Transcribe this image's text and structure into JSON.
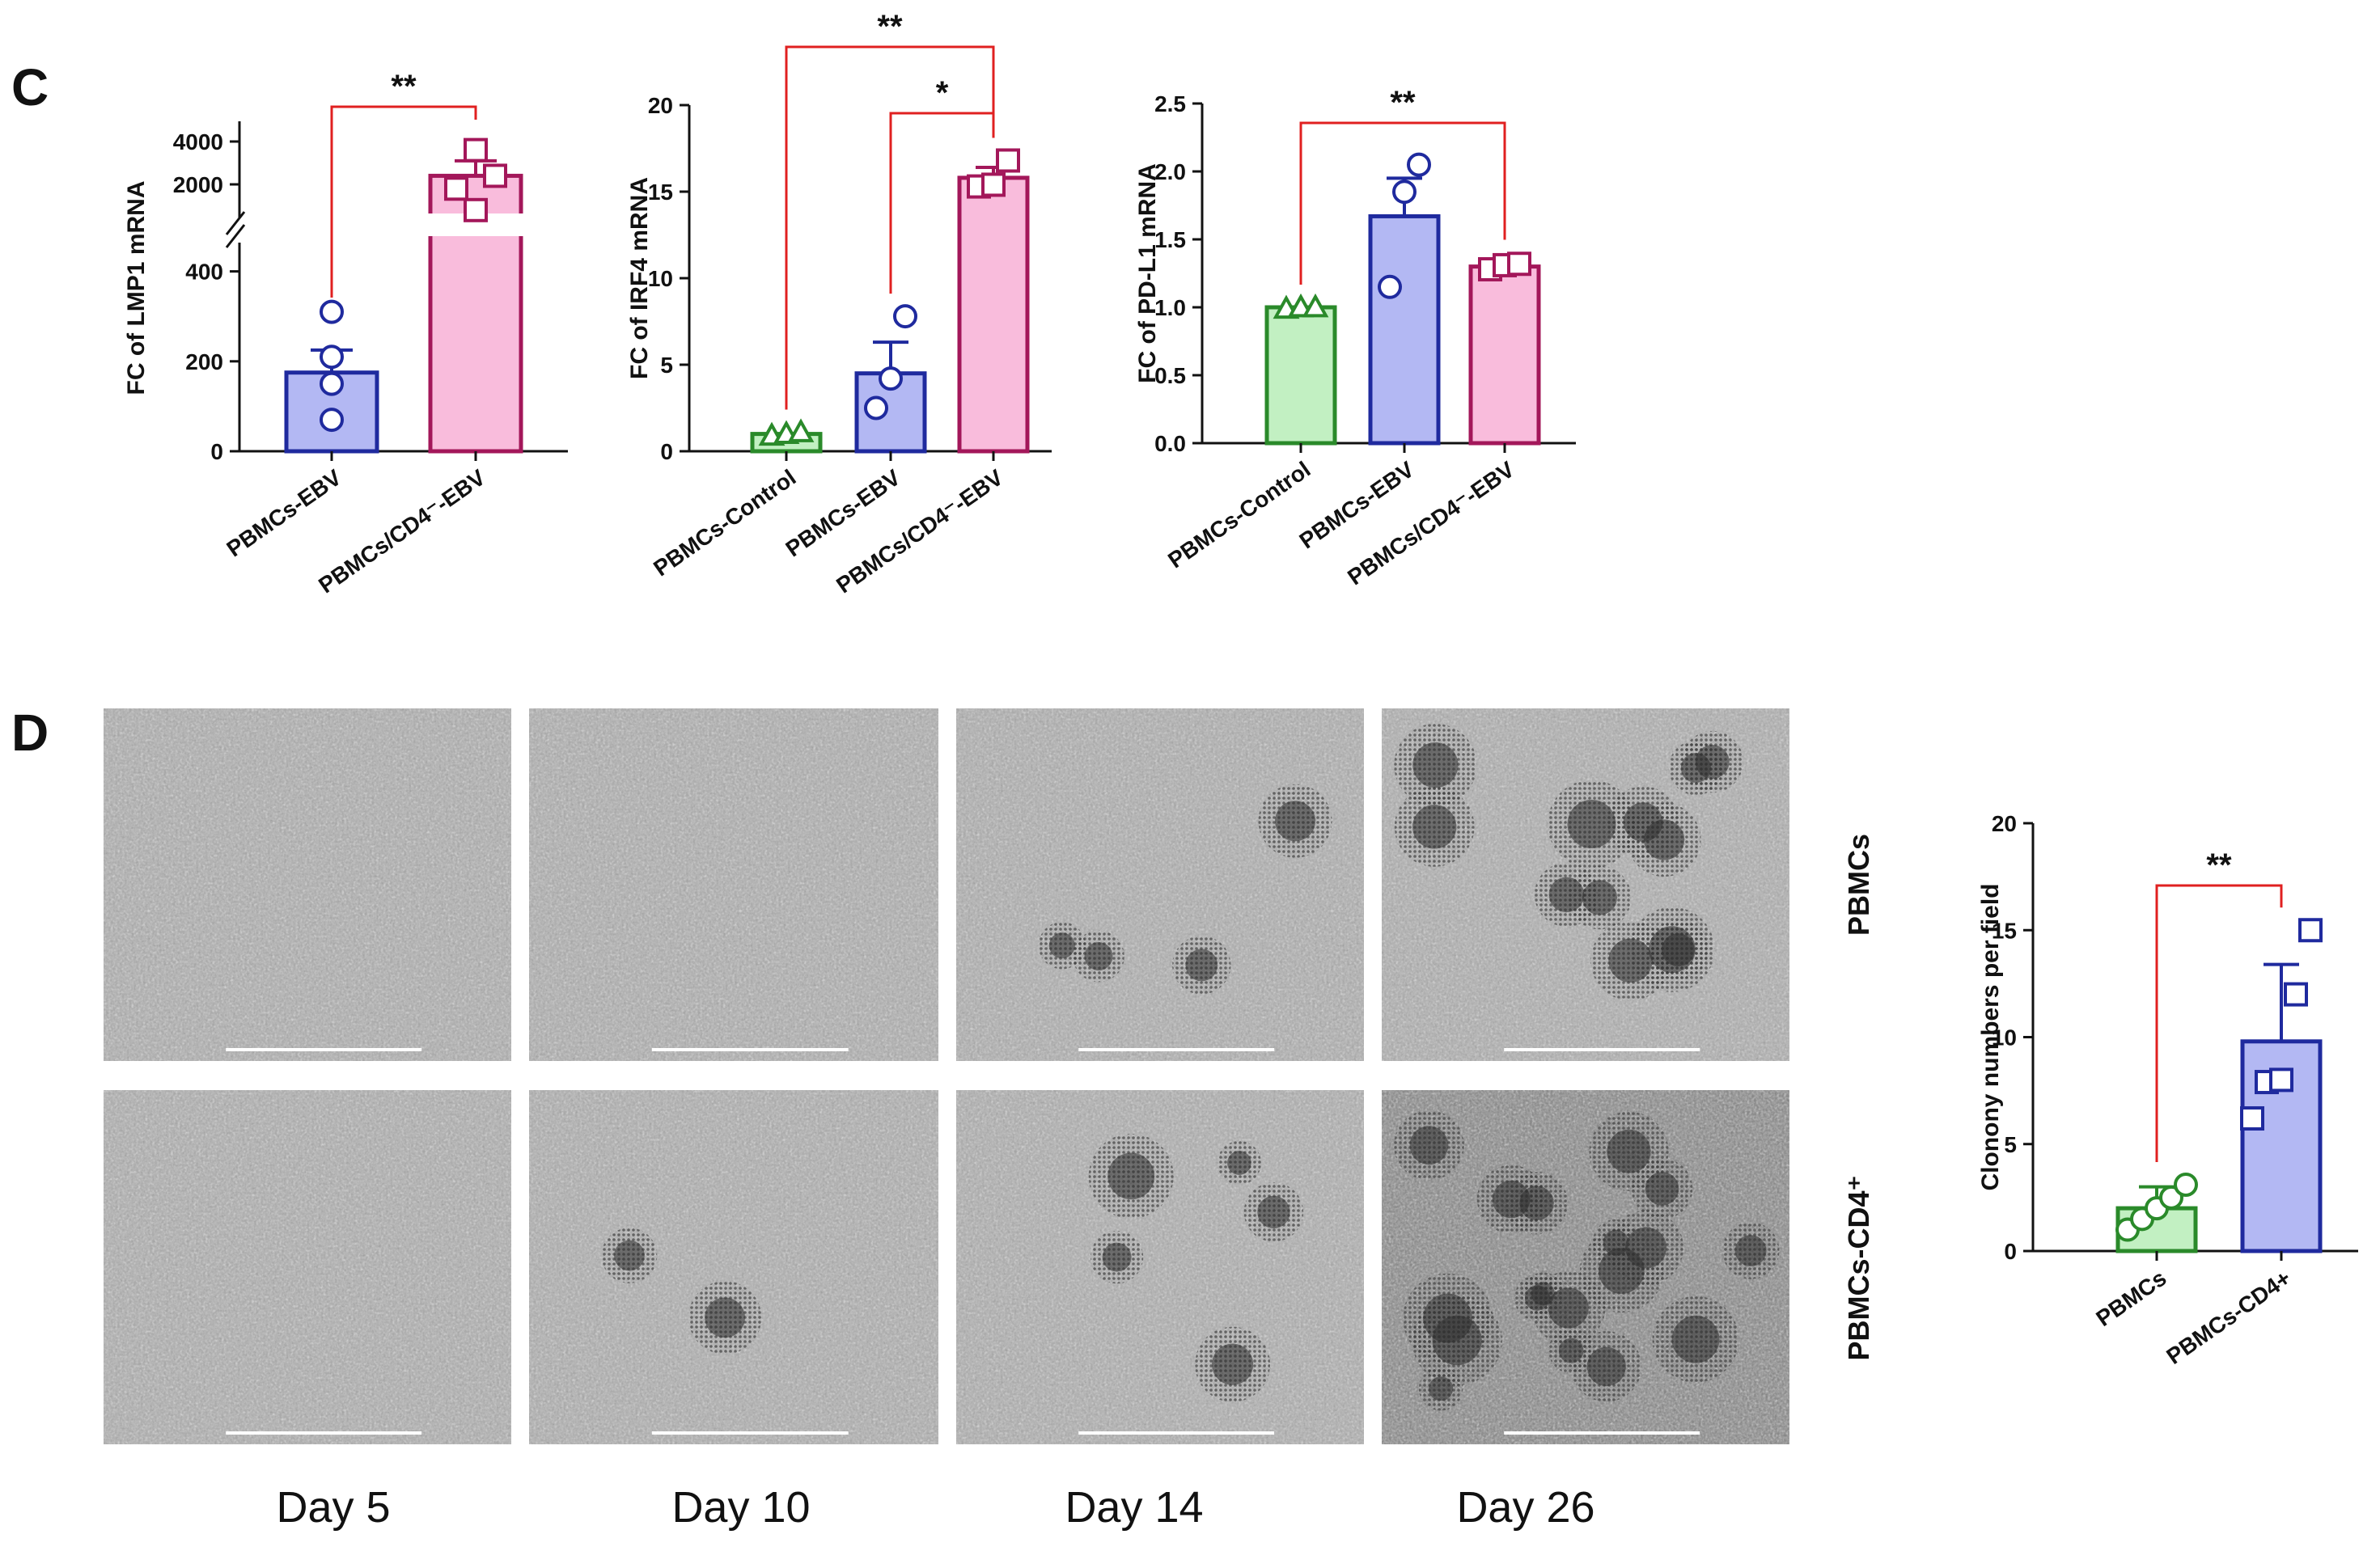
{
  "panels": {
    "c_label": "C",
    "d_label": "D"
  },
  "colors": {
    "blue_fill": "#b3b8f3",
    "blue_stroke": "#1f2a9e",
    "pink_fill": "#f9bcdc",
    "pink_stroke": "#a3175a",
    "green_fill": "#c2f0c2",
    "green_stroke": "#2a8a2a",
    "sig_line": "#e02020"
  },
  "chart_data": [
    {
      "id": "lmp1",
      "type": "bar",
      "ylabel": "FC of LMP1 mRNA",
      "axis_break": true,
      "lower_ylim": [
        0,
        500
      ],
      "lower_ticks": [
        "0",
        "200",
        "400"
      ],
      "upper_ticks": [
        "2000",
        "4000"
      ],
      "categories": [
        "PBMCs-EBV",
        "PBMCs/CD4⁻-EBV"
      ],
      "values": [
        175,
        2400
      ],
      "error": [
        50,
        700
      ],
      "points": [
        [
          70,
          150,
          210,
          310
        ],
        [
          800,
          1800,
          2400,
          3600
        ]
      ],
      "styles": [
        "blue",
        "pink"
      ],
      "markers": [
        "circle",
        "square"
      ],
      "significance": [
        {
          "from": 0,
          "to": 1,
          "label": "**"
        }
      ]
    },
    {
      "id": "irf4",
      "type": "bar",
      "ylabel": "FC of IRF4 mRNA",
      "ylim": [
        0,
        20
      ],
      "ticks": [
        "0",
        "5",
        "10",
        "15",
        "20"
      ],
      "categories": [
        "PBMCs-Control",
        "PBMCs-EBV",
        "PBMCs/CD4⁻-EBV"
      ],
      "values": [
        1.0,
        4.5,
        15.8
      ],
      "error": [
        0.0,
        1.8,
        0.6
      ],
      "points": [
        [
          0.9,
          1.0,
          1.1
        ],
        [
          2.5,
          4.2,
          7.8
        ],
        [
          15.3,
          15.4,
          16.8
        ]
      ],
      "styles": [
        "green",
        "blue",
        "pink"
      ],
      "markers": [
        "triangle",
        "circle",
        "square"
      ],
      "significance": [
        {
          "from": 0,
          "to": 2,
          "label": "**"
        },
        {
          "from": 1,
          "to": 2,
          "label": "*"
        }
      ]
    },
    {
      "id": "pdl1",
      "type": "bar",
      "ylabel": "FC of PD-L1 mRNA",
      "ylim": [
        0,
        2.5
      ],
      "ticks": [
        "0.0",
        "0.5",
        "1.0",
        "1.5",
        "2.0",
        "2.5"
      ],
      "categories": [
        "PBMCs-Control",
        "PBMCs-EBV",
        "PBMCs/CD4⁻-EBV"
      ],
      "values": [
        1.0,
        1.67,
        1.3
      ],
      "error": [
        0.0,
        0.28,
        0.03
      ],
      "points": [
        [
          0.99,
          1.0,
          1.0
        ],
        [
          1.15,
          1.85,
          2.05
        ],
        [
          1.28,
          1.31,
          1.32
        ]
      ],
      "styles": [
        "green",
        "blue",
        "pink"
      ],
      "markers": [
        "triangle",
        "circle",
        "square"
      ],
      "significance": [
        {
          "from": 0,
          "to": 2,
          "label": "**"
        }
      ]
    },
    {
      "id": "colony",
      "type": "bar",
      "ylabel": "Clonony numbers per field",
      "ylim": [
        0,
        20
      ],
      "ticks": [
        "0",
        "5",
        "10",
        "15",
        "20"
      ],
      "categories": [
        "PBMCs",
        "PBMCs-CD4+"
      ],
      "values": [
        2.0,
        9.8
      ],
      "error": [
        1.0,
        3.6
      ],
      "points": [
        [
          1.0,
          1.5,
          2.0,
          2.5,
          3.1
        ],
        [
          6.2,
          7.9,
          8.0,
          12.0,
          15.0
        ]
      ],
      "styles": [
        "green",
        "blue"
      ],
      "markers": [
        "circle",
        "square"
      ],
      "significance": [
        {
          "from": 0,
          "to": 1,
          "label": "**"
        }
      ]
    }
  ],
  "micrographs": {
    "days": [
      "Day 5",
      "Day 10",
      "Day 14",
      "Day 26"
    ],
    "rows": [
      "PBMCs",
      "PBMCs-CD4⁺"
    ],
    "colony_counts": [
      [
        0,
        0,
        4,
        12
      ],
      [
        0,
        2,
        5,
        18
      ]
    ]
  }
}
